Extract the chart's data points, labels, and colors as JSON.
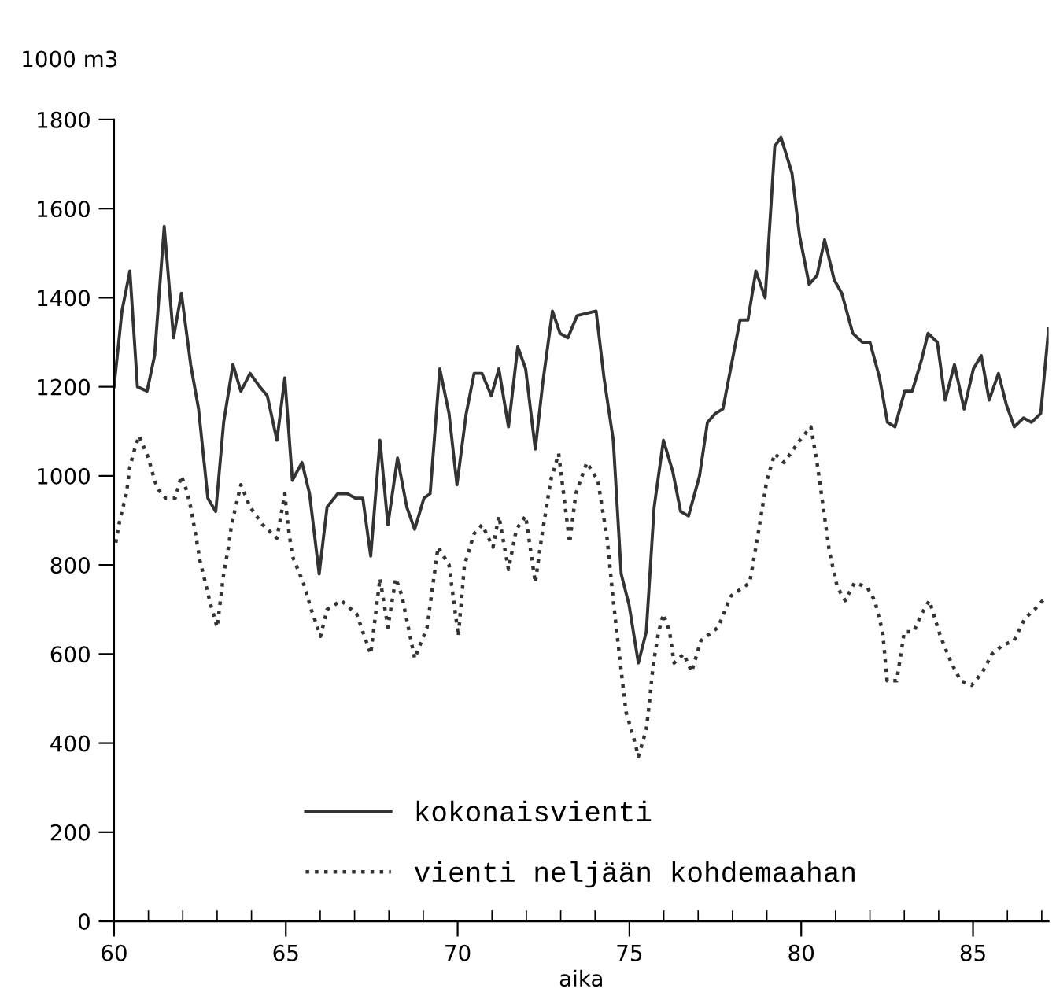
{
  "chart_data": {
    "type": "line",
    "ylabel": "1000 m3",
    "xlabel": "aika",
    "xlim": [
      60,
      87.2
    ],
    "ylim": [
      0,
      1800
    ],
    "xticks": [
      60,
      {
        "value": 61,
        "label": null
      },
      {
        "value": 62,
        "label": null
      },
      {
        "value": 63,
        "label": null
      },
      {
        "value": 64,
        "label": null
      },
      65,
      {
        "value": 66,
        "label": null
      },
      {
        "value": 67,
        "label": null
      },
      {
        "value": 68,
        "label": null
      },
      {
        "value": 69,
        "label": null
      },
      70,
      {
        "value": 71,
        "label": null
      },
      {
        "value": 72,
        "label": null
      },
      {
        "value": 73,
        "label": null
      },
      {
        "value": 74,
        "label": null
      },
      75,
      {
        "value": 76,
        "label": null
      },
      {
        "value": 77,
        "label": null
      },
      {
        "value": 78,
        "label": null
      },
      {
        "value": 79,
        "label": null
      },
      80,
      {
        "value": 81,
        "label": null
      },
      {
        "value": 82,
        "label": null
      },
      {
        "value": 83,
        "label": null
      },
      {
        "value": 84,
        "label": null
      },
      85,
      {
        "value": 86,
        "label": null
      },
      {
        "value": 87,
        "label": null
      }
    ],
    "yticks": [
      0,
      200,
      400,
      600,
      800,
      1000,
      1200,
      1400,
      1600,
      1800
    ],
    "grid": false,
    "legend": "bottom",
    "series": [
      {
        "name": "kokonaisvienti",
        "color": "#333333",
        "line_style": "solid",
        "x": [
          60.0,
          60.23,
          60.46,
          60.68,
          60.96,
          61.18,
          61.46,
          61.73,
          61.96,
          62.23,
          62.46,
          62.73,
          62.96,
          63.19,
          63.46,
          63.69,
          63.96,
          64.24,
          64.46,
          64.74,
          64.97,
          65.19,
          65.47,
          65.69,
          65.97,
          66.2,
          66.51,
          66.79,
          67.02,
          67.24,
          67.47,
          67.74,
          67.97,
          68.25,
          68.52,
          68.75,
          69.02,
          69.2,
          69.48,
          69.75,
          69.98,
          70.25,
          70.48,
          70.71,
          70.98,
          71.2,
          71.48,
          71.75,
          71.98,
          72.26,
          72.48,
          72.76,
          72.98,
          73.21,
          73.48,
          74.03,
          74.26,
          74.53,
          74.76,
          74.99,
          75.26,
          75.49,
          75.72,
          75.99,
          76.26,
          76.49,
          76.72,
          77.04,
          77.27,
          77.5,
          77.72,
          78.22,
          78.45,
          78.68,
          78.95,
          79.23,
          79.41,
          79.73,
          79.95,
          80.23,
          80.46,
          80.68,
          80.96,
          81.18,
          81.5,
          81.78,
          82.0,
          82.28,
          82.51,
          82.73,
          83.01,
          83.23,
          83.5,
          83.69,
          83.96,
          84.19,
          84.46,
          84.74,
          85.01,
          85.24,
          85.47,
          85.74,
          85.97,
          86.2,
          86.47,
          86.7,
          86.97,
          87.2
        ],
        "values": [
          1200,
          1370,
          1460,
          1200,
          1190,
          1270,
          1560,
          1310,
          1410,
          1250,
          1150,
          950,
          920,
          1120,
          1250,
          1190,
          1230,
          1200,
          1180,
          1080,
          1220,
          990,
          1030,
          960,
          780,
          930,
          960,
          960,
          950,
          950,
          820,
          1080,
          890,
          1040,
          930,
          880,
          950,
          960,
          1240,
          1140,
          980,
          1140,
          1230,
          1230,
          1180,
          1240,
          1110,
          1290,
          1240,
          1060,
          1210,
          1370,
          1320,
          1310,
          1360,
          1370,
          1220,
          1080,
          780,
          710,
          580,
          650,
          930,
          1080,
          1010,
          920,
          910,
          1000,
          1120,
          1140,
          1150,
          1350,
          1350,
          1460,
          1400,
          1740,
          1760,
          1680,
          1540,
          1430,
          1450,
          1530,
          1440,
          1410,
          1320,
          1300,
          1300,
          1220,
          1120,
          1110,
          1190,
          1190,
          1260,
          1320,
          1300,
          1170,
          1250,
          1150,
          1240,
          1270,
          1170,
          1230,
          1160,
          1110,
          1130,
          1120,
          1140,
          1330
        ]
      },
      {
        "name": "vienti neljään kohdemaahan",
        "color": "#333333",
        "line_style": "dotted",
        "x": [
          60.05,
          60.14,
          60.23,
          60.36,
          60.46,
          60.6,
          60.73,
          61.0,
          61.18,
          61.28,
          61.5,
          61.78,
          61.96,
          62.1,
          62.23,
          62.37,
          62.5,
          62.69,
          62.78,
          63.0,
          63.19,
          63.33,
          63.42,
          63.6,
          63.69,
          63.96,
          64.33,
          64.74,
          64.97,
          65.06,
          65.19,
          65.51,
          65.74,
          66.01,
          66.2,
          66.61,
          67.06,
          67.47,
          67.74,
          67.97,
          68.2,
          68.38,
          68.75,
          69.11,
          69.43,
          69.75,
          70.02,
          70.2,
          70.48,
          70.71,
          71.03,
          71.2,
          71.48,
          71.71,
          71.98,
          72.26,
          72.44,
          72.71,
          72.94,
          73.26,
          73.44,
          73.76,
          74.08,
          74.35,
          74.53,
          74.72,
          74.9,
          75.13,
          75.26,
          75.49,
          75.58,
          75.67,
          75.72,
          75.85,
          75.99,
          76.17,
          76.3,
          76.58,
          76.81,
          77.08,
          77.58,
          77.95,
          78.5,
          78.68,
          79.0,
          79.23,
          79.5,
          79.96,
          80.28,
          80.46,
          80.64,
          80.82,
          81.05,
          81.28,
          81.55,
          81.92,
          82.14,
          82.37,
          82.5,
          82.78,
          83.0,
          83.27,
          83.5,
          83.73,
          84.05,
          84.37,
          84.64,
          84.96,
          85.28,
          85.55,
          85.87,
          86.19,
          86.51,
          86.79,
          87.15
        ],
        "values": [
          850,
          890,
          920,
          960,
          1020,
          1060,
          1090,
          1040,
          990,
          970,
          950,
          950,
          1000,
          970,
          930,
          870,
          810,
          750,
          720,
          660,
          780,
          840,
          890,
          950,
          980,
          930,
          890,
          860,
          960,
          890,
          820,
          760,
          700,
          640,
          700,
          720,
          690,
          600,
          770,
          660,
          770,
          730,
          590,
          660,
          840,
          800,
          640,
          800,
          870,
          890,
          840,
          910,
          790,
          880,
          910,
          760,
          860,
          990,
          1050,
          850,
          960,
          1030,
          990,
          860,
          720,
          590,
          470,
          410,
          370,
          430,
          490,
          560,
          590,
          650,
          690,
          650,
          580,
          600,
          560,
          630,
          660,
          730,
          760,
          840,
          990,
          1050,
          1030,
          1080,
          1110,
          1030,
          930,
          830,
          750,
          720,
          760,
          750,
          720,
          650,
          540,
          540,
          650,
          650,
          690,
          720,
          640,
          580,
          540,
          530,
          560,
          600,
          620,
          630,
          680,
          700,
          730
        ]
      }
    ]
  }
}
